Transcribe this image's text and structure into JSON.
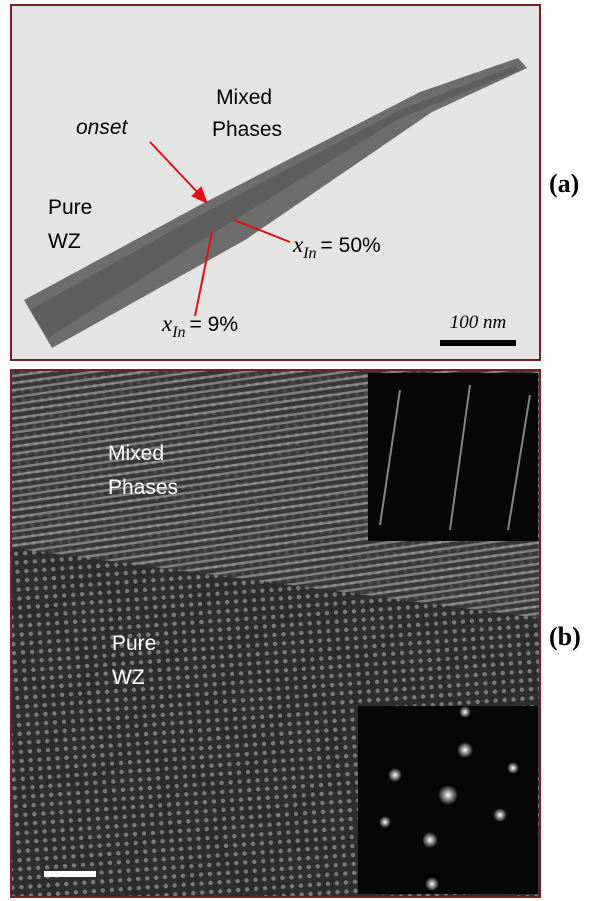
{
  "panel_a": {
    "label": "(a)",
    "region_mixed": "Mixed Phases",
    "onset": "onset",
    "region_pure": "Pure WZ",
    "composition_high": {
      "var": "x",
      "sub": "In",
      "rest": "= 50%"
    },
    "composition_low": {
      "var": "x",
      "sub": "In",
      "rest": "= 9%"
    },
    "scale_bar": "100 nm"
  },
  "panel_b": {
    "label": "(b)",
    "region_mixed": "Mixed Phases",
    "region_pure": "Pure WZ"
  }
}
